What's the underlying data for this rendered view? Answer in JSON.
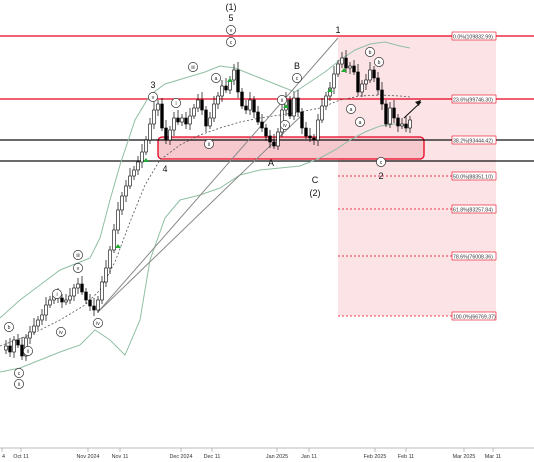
{
  "chart_data": {
    "type": "candlestick",
    "x_ticks": [
      "4",
      "Oct 11",
      "Nov 2024",
      "Nov 11",
      "Dec 2024",
      "Dec 11",
      "Jan 2025",
      "Jan 11",
      "Feb 2025",
      "Feb 11",
      "Mar 2025",
      "Mar 11"
    ],
    "fib_levels": [
      {
        "label": "0.0%(109832.99)",
        "value": 109832.99
      },
      {
        "label": "23.6%(99746.30)",
        "value": 99746.3
      },
      {
        "label": "38.2%(93444.42)",
        "value": 93444.42
      },
      {
        "label": "50.0%(88351.10)",
        "value": 88351.1
      },
      {
        "label": "61.8%(83257.84)",
        "value": 83257.84
      },
      {
        "label": "78.6%(76008.36)",
        "value": 76008.36
      },
      {
        "label": "100.0%(66769.37)",
        "value": 66769.37
      }
    ],
    "wave_labels": [
      "(1)",
      "5",
      "v",
      "1",
      "c",
      "b",
      "B",
      "c",
      "a",
      "iii",
      "a",
      "b",
      "3",
      "v",
      "i",
      "ii",
      "iv",
      "ii",
      "4",
      "A",
      "C",
      "(2)",
      "a",
      "2",
      "c",
      "iii",
      "v",
      "i",
      "iv",
      "iv",
      "b",
      "ii",
      "c",
      "ii"
    ],
    "colors": {
      "up": "#ffffff",
      "down": "#000000",
      "resistance": "#e8001c",
      "support": "#111111",
      "zone_fill": "#f6c9cf",
      "projection_fill": "#fbe3e6",
      "band": "#8fbfa3",
      "ma": "#555555",
      "trendline": "#888888",
      "arrow": "#22aa33"
    }
  }
}
